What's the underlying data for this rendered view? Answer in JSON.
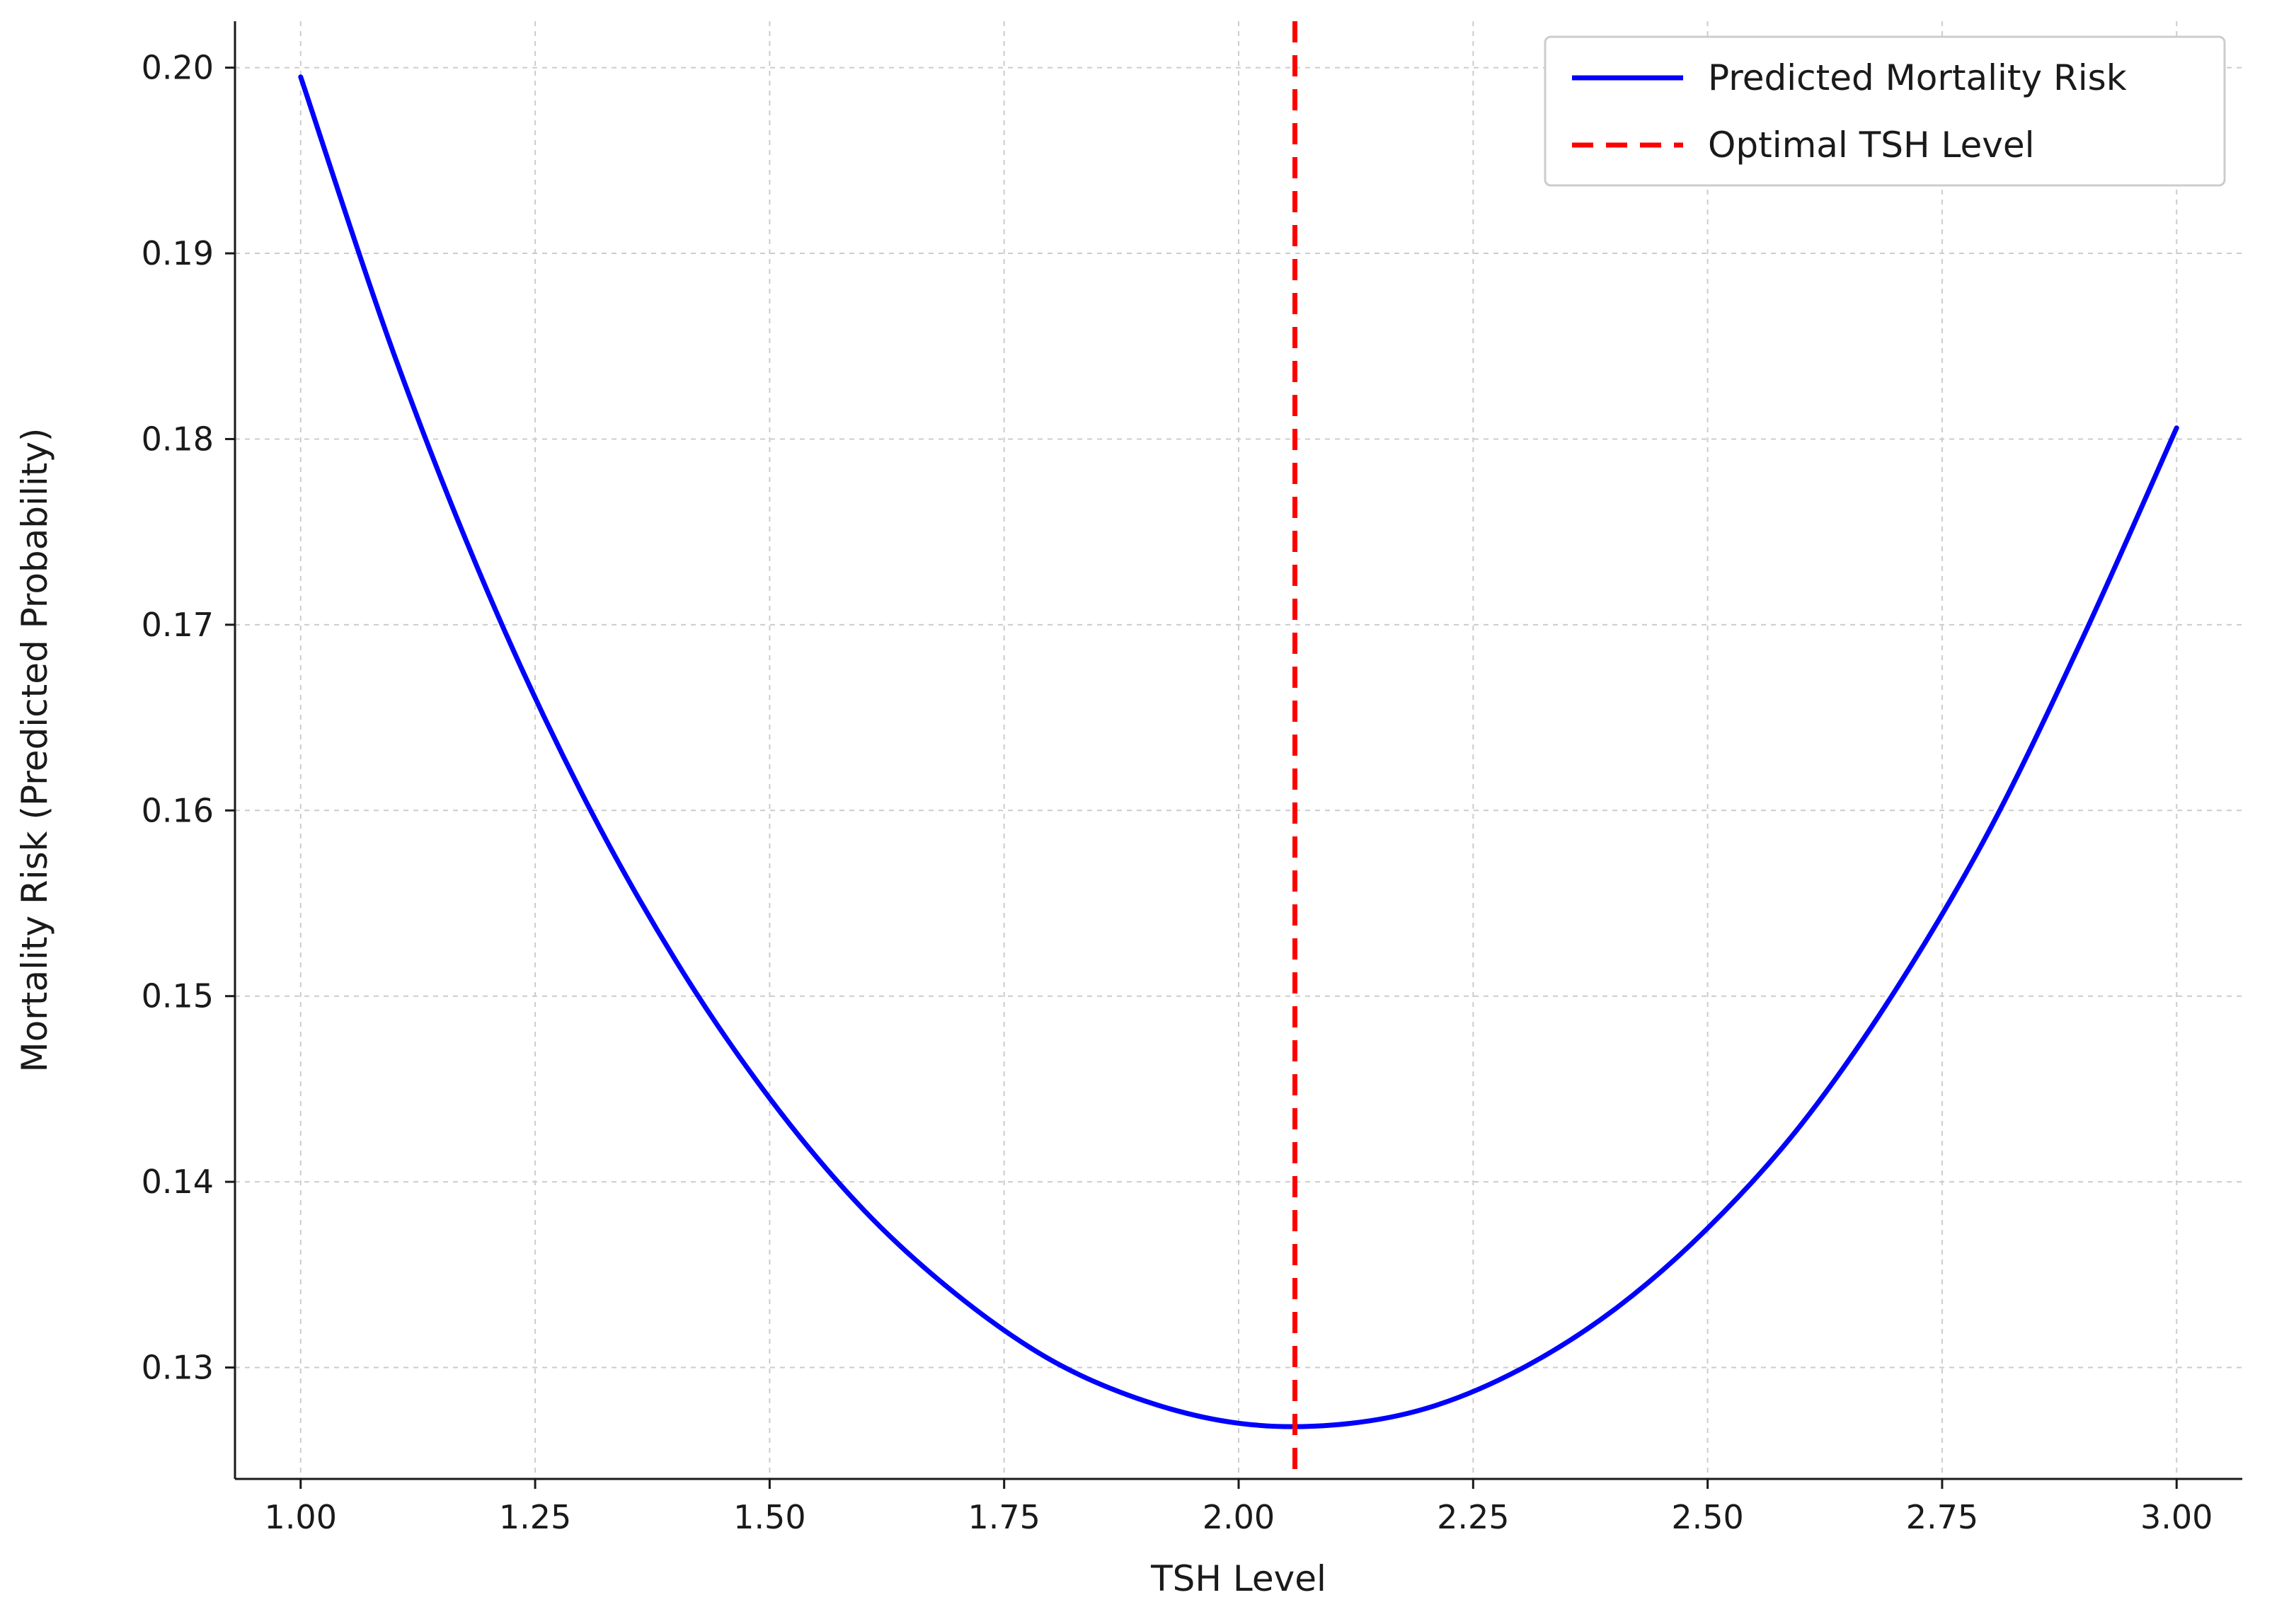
{
  "figure": {
    "background": "#ffffff"
  },
  "chart_data": {
    "type": "line",
    "title": "",
    "xlabel": "TSH Level",
    "ylabel": "Mortality Risk (Predicted Probability)",
    "xlim": [
      0.93,
      3.07
    ],
    "ylim": [
      0.124,
      0.2025
    ],
    "grid": true,
    "xticks": {
      "values": [
        1.0,
        1.25,
        1.5,
        1.75,
        2.0,
        2.25,
        2.5,
        2.75,
        3.0
      ],
      "labels": [
        "1.00",
        "1.25",
        "1.50",
        "1.75",
        "2.00",
        "2.25",
        "2.50",
        "2.75",
        "3.00"
      ]
    },
    "yticks": {
      "values": [
        0.13,
        0.14,
        0.15,
        0.16,
        0.17,
        0.18,
        0.19,
        0.2
      ],
      "labels": [
        "0.13",
        "0.14",
        "0.15",
        "0.16",
        "0.17",
        "0.18",
        "0.19",
        "0.20"
      ]
    },
    "series": [
      {
        "name": "Predicted Mortality Risk",
        "color": "#0000ff",
        "style": "solid",
        "x": [
          1.0,
          1.1,
          1.2,
          1.3,
          1.4,
          1.5,
          1.6,
          1.7,
          1.8,
          1.9,
          2.0,
          2.1,
          2.2,
          2.3,
          2.4,
          2.5,
          2.6,
          2.7,
          2.8,
          2.9,
          3.0
        ],
        "y": [
          0.1995,
          0.1845,
          0.1717,
          0.1609,
          0.1519,
          0.1445,
          0.1385,
          0.1339,
          0.1304,
          0.1282,
          0.127,
          0.1269,
          0.1278,
          0.1299,
          0.1331,
          0.1375,
          0.1431,
          0.1503,
          0.1589,
          0.1693,
          0.1806
        ]
      }
    ],
    "vline": {
      "name": "Optimal TSH Level",
      "x": 2.06,
      "color": "#ff0000",
      "style": "dashed"
    },
    "legend": {
      "position": "upper right",
      "entries": [
        {
          "label": "Predicted Mortality Risk",
          "color": "#0000ff",
          "dash": "solid"
        },
        {
          "label": "Optimal TSH Level",
          "color": "#ff0000",
          "dash": "dashed"
        }
      ]
    },
    "style": {
      "grid_color": "#cccccc",
      "spine_color": "#1a1a1a",
      "background": "#ffffff"
    }
  }
}
